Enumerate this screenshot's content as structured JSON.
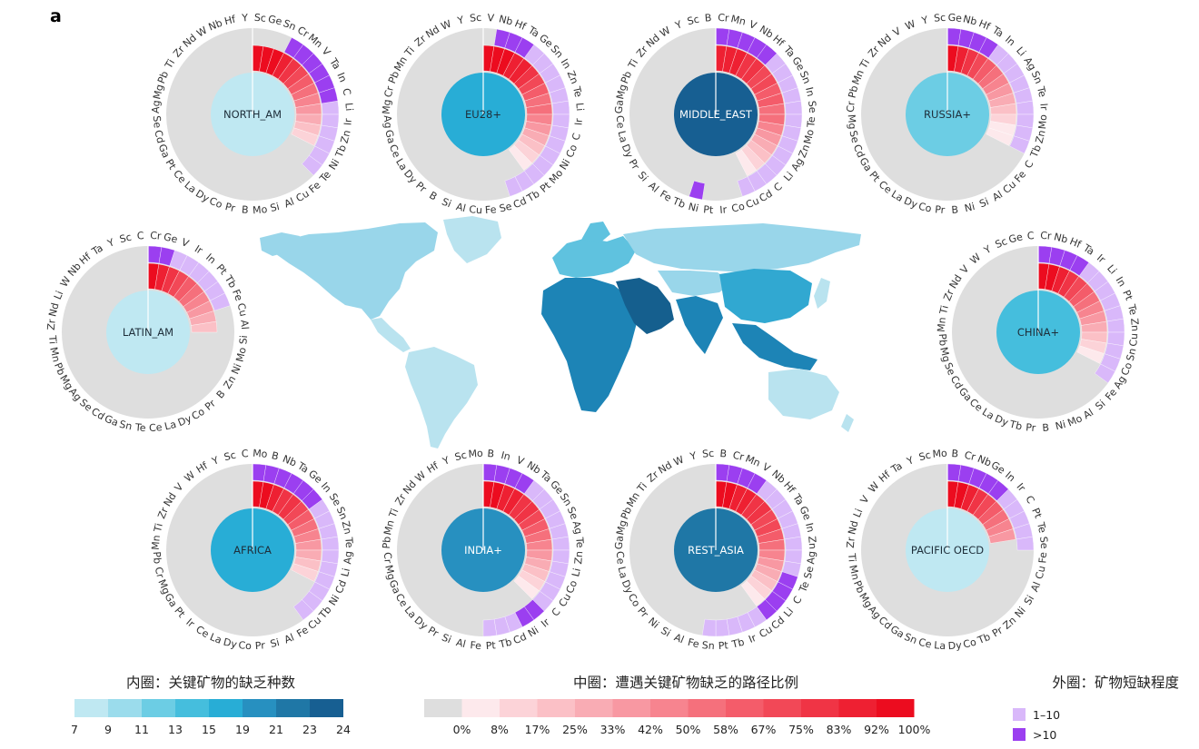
{
  "panel_label": "a",
  "colors": {
    "ring_grey": "#dedede",
    "outer_low": "#d9b8fa",
    "outer_high": "#9b3ff0",
    "inner_scale": [
      "#e4f5fa",
      "#bfe8f2",
      "#9bdcec",
      "#6ccde4",
      "#45bedd",
      "#28add6",
      "#2790c0",
      "#1f77a6",
      "#175f92"
    ],
    "middle_scale": [
      "#dedede",
      "#fde9ec",
      "#fcd3d8",
      "#fbc0c6",
      "#f9acb4",
      "#f898a2",
      "#f7848f",
      "#f5707c",
      "#f45c6a",
      "#f24857",
      "#f03445",
      "#ee2032",
      "#ec0c1f"
    ],
    "map_land": [
      "#b9e3ef",
      "#99d6ea",
      "#5fc2df",
      "#31a8d1",
      "#1d84b6",
      "#155f8e"
    ]
  },
  "regions": [
    {
      "name": "NORTH_AM",
      "inner_level": 1,
      "labels": [
        "Sc",
        "Ge",
        "Sn",
        "Cr",
        "Mn",
        "V",
        "Ta",
        "In",
        "C",
        "Li",
        "Ir",
        "Zn",
        "Tb",
        "Ni",
        "Te",
        "Fe",
        "Cu",
        "Al",
        "Si",
        "Mo",
        "B",
        "Pr",
        "Co",
        "Dy",
        "La",
        "Ce",
        "Pt",
        "Ga",
        "Cd",
        "Se",
        "Ag",
        "Mg",
        "Pb",
        "Ti",
        "Zr",
        "Nd",
        "W",
        "Nb",
        "Hf",
        "Y"
      ],
      "middle": [
        12,
        12,
        12,
        11,
        10,
        9,
        8,
        7,
        6,
        5,
        4,
        3,
        2
      ],
      "outer_low": [
        9,
        10,
        11,
        12,
        13,
        14
      ],
      "outer_high": [
        3,
        4,
        5,
        6,
        7,
        8
      ]
    },
    {
      "name": "EU28+",
      "inner_level": 5,
      "labels": [
        "V",
        "Nb",
        "Hf",
        "Ta",
        "Ge",
        "Sn",
        "In",
        "Zn",
        "Te",
        "Li",
        "Ir",
        "C",
        "Co",
        "Ni",
        "Mo",
        "Pt",
        "Tb",
        "Cd",
        "Se",
        "Fe",
        "Cu",
        "Al",
        "Si",
        "B",
        "Pr",
        "Dy",
        "La",
        "Ce",
        "Ga",
        "Ag",
        "Mg",
        "Cr",
        "Pb",
        "Mn",
        "Ti",
        "Zr",
        "Nd",
        "W",
        "Y",
        "Sc"
      ],
      "middle": [
        12,
        12,
        12,
        11,
        11,
        10,
        9,
        8,
        7,
        7,
        6,
        5,
        4,
        3,
        2,
        1
      ],
      "outer_low": [
        4,
        5,
        6,
        7,
        8,
        9,
        10,
        11,
        12,
        13,
        14,
        15,
        16,
        17
      ],
      "outer_high": [
        1,
        2,
        3
      ]
    },
    {
      "name": "MIDDLE_EAST",
      "inner_level": 8,
      "labels": [
        "Cr",
        "Mn",
        "V",
        "Nb",
        "Hf",
        "Ta",
        "Ge",
        "Sn",
        "In",
        "Se",
        "Te",
        "Mo",
        "Zn",
        "Ag",
        "Li",
        "C",
        "Cd",
        "Cu",
        "Co",
        "Ir",
        "Pt",
        "Ni",
        "Tb",
        "Fe",
        "Al",
        "Si",
        "Pr",
        "Dy",
        "La",
        "Ce",
        "Ga",
        "Mg",
        "Pb",
        "Ti",
        "Zr",
        "Nd",
        "W",
        "Y",
        "Sc",
        "B"
      ],
      "middle": [
        11,
        11,
        11,
        10,
        10,
        9,
        9,
        8,
        8,
        7,
        7,
        6,
        5,
        4,
        3,
        2,
        1
      ],
      "outer_low": [
        5,
        6,
        7,
        8,
        9,
        10,
        11,
        12,
        13,
        14,
        15,
        16,
        17
      ],
      "outer_high": [
        0,
        1,
        2,
        3,
        4,
        21
      ]
    },
    {
      "name": "RUSSIA+",
      "inner_level": 3,
      "labels": [
        "Ge",
        "Nb",
        "Hf",
        "Ta",
        "In",
        "Li",
        "Ag",
        "Sn",
        "Te",
        "Ir",
        "Mo",
        "Zn",
        "Tb",
        "C",
        "Fe",
        "Cu",
        "Al",
        "Si",
        "Ni",
        "B",
        "Pr",
        "Co",
        "Dy",
        "La",
        "Ce",
        "Pt",
        "Ga",
        "Cd",
        "Se",
        "Mg",
        "Cr",
        "Pb",
        "Mn",
        "Ti",
        "Zr",
        "Nd",
        "V",
        "W",
        "Y",
        "Sc"
      ],
      "middle": [
        12,
        11,
        10,
        9,
        8,
        7,
        6,
        5,
        4,
        3,
        2,
        1,
        1
      ],
      "outer_low": [
        4,
        5,
        6,
        7,
        8,
        9,
        10,
        11,
        12
      ],
      "outer_high": [
        0,
        1,
        2,
        3
      ]
    },
    {
      "name": "LATIN_AM",
      "inner_level": 1,
      "labels": [
        "Cr",
        "Ge",
        "V",
        "Ir",
        "In",
        "Pt",
        "Tb",
        "Fe",
        "Cu",
        "Al",
        "Si",
        "Mo",
        "Ni",
        "Zn",
        "B",
        "Pr",
        "Co",
        "Dy",
        "La",
        "Ce",
        "Te",
        "Sn",
        "Ga",
        "Cd",
        "Se",
        "Ag",
        "Mg",
        "Pb",
        "Mn",
        "Ti",
        "Zr",
        "Nd",
        "Li",
        "W",
        "Nb",
        "Hf",
        "Ta",
        "Y",
        "Sc",
        "C"
      ],
      "middle": [
        12,
        11,
        10,
        9,
        8,
        7,
        6,
        5,
        4,
        3
      ],
      "outer_low": [
        2,
        3,
        4,
        5,
        6,
        7
      ],
      "outer_high": [
        0,
        1
      ]
    },
    {
      "name": "CHINA+",
      "inner_level": 4,
      "labels": [
        "Cr",
        "Nb",
        "Hf",
        "Ta",
        "Ir",
        "Li",
        "In",
        "Pt",
        "Te",
        "Zn",
        "Cu",
        "Sn",
        "Co",
        "Ag",
        "Fe",
        "Si",
        "Al",
        "Mo",
        "Ni",
        "B",
        "Pr",
        "Tb",
        "Dy",
        "La",
        "Ce",
        "Ga",
        "Cd",
        "Se",
        "Mg",
        "Pb",
        "Mn",
        "Ti",
        "Zr",
        "Nd",
        "V",
        "W",
        "Y",
        "Sc",
        "Ge",
        "C"
      ],
      "middle": [
        12,
        12,
        11,
        10,
        9,
        8,
        7,
        6,
        5,
        4,
        3,
        2,
        1
      ],
      "outer_low": [
        4,
        5,
        6,
        7,
        8,
        9,
        10,
        11,
        12,
        13
      ],
      "outer_high": [
        0,
        1,
        2,
        3
      ]
    },
    {
      "name": "AFRICA",
      "inner_level": 5,
      "labels": [
        "Mo",
        "B",
        "Nb",
        "Ta",
        "Ge",
        "In",
        "Se",
        "Sn",
        "Zn",
        "Te",
        "Ag",
        "Li",
        "Cd",
        "Ni",
        "Tb",
        "Cu",
        "Fe",
        "Al",
        "Si",
        "Pr",
        "Co",
        "Dy",
        "La",
        "Ce",
        "Ir",
        "Pt",
        "Ga",
        "Mg",
        "Cr",
        "Pb",
        "Mn",
        "Ti",
        "Zr",
        "Nd",
        "V",
        "W",
        "Hf",
        "Y",
        "Sc",
        "C"
      ],
      "middle": [
        12,
        12,
        11,
        10,
        10,
        9,
        8,
        7,
        6,
        5,
        4,
        3,
        2
      ],
      "outer_low": [
        6,
        7,
        8,
        9,
        10,
        11,
        12,
        13,
        14,
        15
      ],
      "outer_high": [
        0,
        1,
        2,
        3,
        4,
        5
      ]
    },
    {
      "name": "INDIA+",
      "inner_level": 6,
      "labels": [
        "B",
        "In",
        "V",
        "Nb",
        "Ta",
        "Ge",
        "Sn",
        "Se",
        "Ag",
        "Te",
        "Zn",
        "Li",
        "Co",
        "Cu",
        "C",
        "Ir",
        "Ni",
        "Cd",
        "Tb",
        "Pt",
        "Fe",
        "Al",
        "Si",
        "Pr",
        "Dy",
        "La",
        "Ce",
        "Ga",
        "Mg",
        "Cr",
        "Pb",
        "Mn",
        "Ti",
        "Zr",
        "Nd",
        "W",
        "Hf",
        "Y",
        "Sc",
        "Mo"
      ],
      "middle": [
        12,
        12,
        11,
        11,
        10,
        10,
        9,
        8,
        7,
        6,
        5,
        4,
        3,
        2,
        1
      ],
      "outer_low": [
        4,
        5,
        6,
        7,
        8,
        9,
        10,
        11,
        12,
        13,
        14,
        15,
        16,
        17,
        18,
        19
      ],
      "outer_high": [
        0,
        1,
        2,
        3,
        15,
        16
      ]
    },
    {
      "name": "REST_ASIA",
      "inner_level": 7,
      "labels": [
        "B",
        "Cr",
        "Mn",
        "V",
        "Nb",
        "Hf",
        "Ta",
        "Ge",
        "In",
        "Zn",
        "Ag",
        "Se",
        "Te",
        "C",
        "Li",
        "Cd",
        "Cu",
        "Ir",
        "Tb",
        "Pt",
        "Sn",
        "Fe",
        "Al",
        "Si",
        "Ni",
        "Pr",
        "Co",
        "Dy",
        "La",
        "Ce",
        "Ga",
        "Mg",
        "Pb",
        "Mn",
        "Ti",
        "Zr",
        "Nd",
        "W",
        "Y",
        "Sc"
      ],
      "middle": [
        12,
        12,
        11,
        11,
        10,
        10,
        9,
        9,
        8,
        7,
        6,
        5,
        4,
        3,
        2,
        1
      ],
      "outer_low": [
        4,
        5,
        6,
        7,
        8,
        9,
        10,
        11,
        12,
        13,
        14,
        15,
        16,
        17,
        18,
        19,
        20
      ],
      "outer_high": [
        0,
        1,
        2,
        3,
        12,
        13,
        14,
        15
      ]
    },
    {
      "name": "PACIFIC OECD",
      "inner_level": 1,
      "labels": [
        "B",
        "Cr",
        "Nb",
        "Ge",
        "In",
        "Ir",
        "C",
        "Pt",
        "Te",
        "Se",
        "Fe",
        "Cu",
        "Al",
        "Si",
        "Ni",
        "Zn",
        "Pr",
        "Tb",
        "Co",
        "Dy",
        "La",
        "Ce",
        "Sn",
        "Ga",
        "Cd",
        "Ag",
        "Mg",
        "Pb",
        "Mn",
        "Ti",
        "Zr",
        "Nd",
        "Li",
        "V",
        "W",
        "Hf",
        "Ta",
        "Y",
        "Sc",
        "Mo"
      ],
      "middle": [
        12,
        12,
        11,
        10,
        9,
        8,
        7,
        6,
        5
      ],
      "outer_low": [
        5,
        6,
        7,
        8,
        9
      ],
      "outer_high": [
        0,
        1,
        2,
        3,
        4
      ]
    }
  ],
  "legend_inner": {
    "title": "内圈：关键矿物的缺乏种数",
    "ticks": [
      "7",
      "9",
      "11",
      "13",
      "15",
      "19",
      "21",
      "23",
      "24"
    ]
  },
  "legend_middle": {
    "title": "中圈：遭遇关键矿物缺乏的路径比例",
    "ticks": [
      "0%",
      "8%",
      "17%",
      "25%",
      "33%",
      "42%",
      "50%",
      "58%",
      "67%",
      "75%",
      "83%",
      "92%",
      "100%"
    ]
  },
  "legend_outer": {
    "title": "外圈：矿物短缺程度",
    "items": [
      {
        "label": "1–10",
        "level": "low"
      },
      {
        "label": ">10",
        "level": "high"
      }
    ]
  }
}
